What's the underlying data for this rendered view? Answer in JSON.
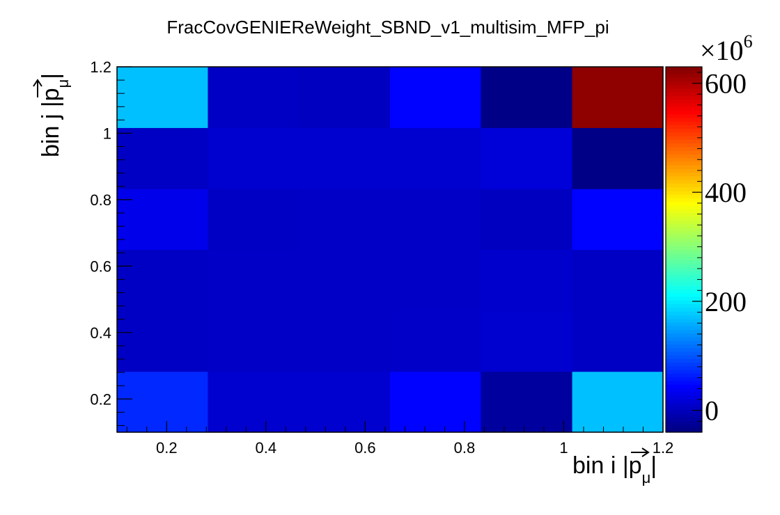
{
  "chart_data": {
    "type": "heatmap",
    "title": "FracCovGENIEReWeight_SBND_v1_multisim_MFP_pi",
    "xlabel": {
      "main": "bin i |",
      "sym": "p",
      "sub": "μ",
      "close": "|"
    },
    "ylabel": {
      "main": "bin j |",
      "sym": "p",
      "sub": "μ",
      "close": "|"
    },
    "x_edges": [
      0.1,
      0.283,
      0.467,
      0.65,
      0.833,
      1.017,
      1.2
    ],
    "y_edges": [
      0.1,
      0.283,
      0.467,
      0.65,
      0.833,
      1.017,
      1.2
    ],
    "xlim": [
      0.1,
      1.2
    ],
    "ylim": [
      0.1,
      1.2
    ],
    "x_ticks": [
      0.2,
      0.4,
      0.6,
      0.8,
      1,
      1.2
    ],
    "x_tick_labels": [
      "0.2",
      "0.4",
      "0.6",
      "0.8",
      "1",
      "1.2"
    ],
    "y_ticks": [
      0.2,
      0.4,
      0.6,
      0.8,
      1,
      1.2
    ],
    "y_tick_labels": [
      "0.2",
      "0.4",
      "0.6",
      "0.8",
      "1",
      "1.2"
    ],
    "z_values": [
      [
        70,
        12,
        12,
        45,
        -20,
        170
      ],
      [
        5,
        7,
        7,
        8,
        12,
        5
      ],
      [
        5,
        7,
        7,
        7,
        10,
        5
      ],
      [
        30,
        5,
        6,
        6,
        3,
        45
      ],
      [
        5,
        12,
        12,
        12,
        18,
        -35
      ],
      [
        170,
        5,
        3,
        45,
        -35,
        620
      ]
    ],
    "z_range": [
      -40,
      630
    ],
    "z_ticks": [
      0,
      200,
      400,
      600
    ],
    "z_tick_labels": [
      "0",
      "200",
      "400",
      "600"
    ],
    "z_multiplier": {
      "base": "×10",
      "exp": "6"
    },
    "colormap": "jet"
  }
}
